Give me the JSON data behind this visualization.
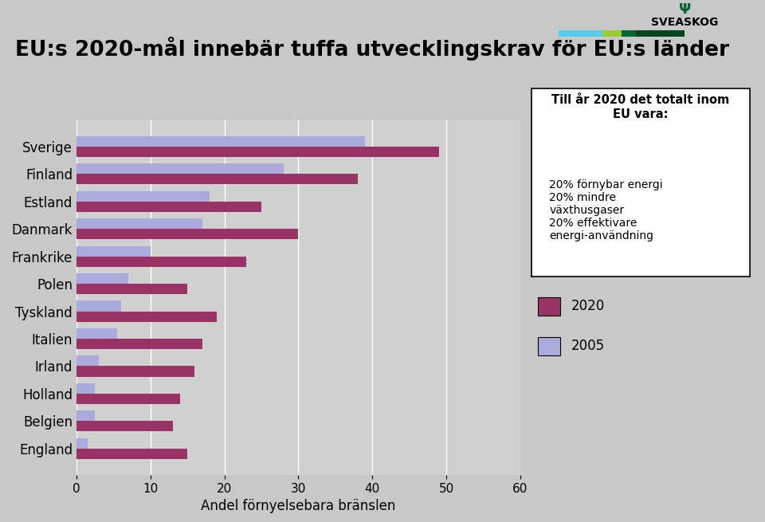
{
  "title": "EU:s 2020-mål innebär tuffa utvecklingskrav för EU:s länder",
  "xlabel": "Andel förnyelsebara bränslen",
  "countries": [
    "Sverige",
    "Finland",
    "Estland",
    "Danmark",
    "Frankrike",
    "Polen",
    "Tyskland",
    "Italien",
    "Irland",
    "Holland",
    "Belgien",
    "England"
  ],
  "values_2020": [
    49,
    38,
    25,
    30,
    23,
    15,
    19,
    17,
    16,
    14,
    13,
    15
  ],
  "values_2005": [
    39,
    28,
    18,
    17,
    10,
    7,
    6,
    5.5,
    3,
    2.5,
    2.5,
    1.5
  ],
  "color_2020": "#993366",
  "color_2005": "#aaaadd",
  "xlim": [
    0,
    60
  ],
  "xticks": [
    0,
    10,
    20,
    30,
    40,
    50,
    60
  ],
  "background_color": "#c8c8c8",
  "plot_bg": "#d0d0d0",
  "annotation_title": "Till år 2020 det totalt inom\nEU vara:",
  "annotation_body": "20% förnybar energi\n20% mindre\nväxthusgaser\n20% effektivare\nenergi-användning",
  "legend_2020": "2020",
  "legend_2005": "2005",
  "title_fontsize": 19,
  "axis_fontsize": 12,
  "tick_fontsize": 11,
  "bar_height": 0.38
}
